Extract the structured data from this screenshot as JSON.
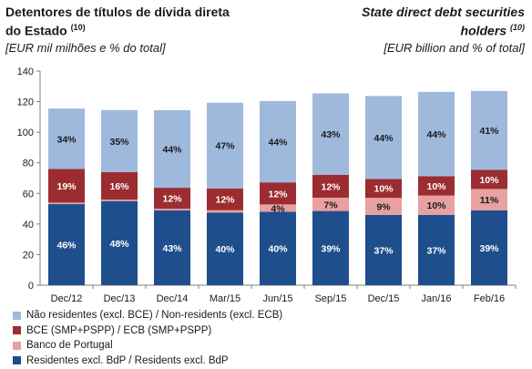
{
  "header": {
    "title_left_line1": "Detentores de títulos de dívida direta",
    "title_left_line2": "do Estado",
    "title_left_note": "(10)",
    "title_right_line1": "State direct debt securities",
    "title_right_line2": "holders",
    "title_right_note": "(10)",
    "subtitle_left": "[EUR mil milhões e % do total]",
    "subtitle_right": "[EUR billion and % of total]"
  },
  "chart_data": {
    "type": "bar",
    "stacked": true,
    "categories": [
      "Dec/12",
      "Dec/13",
      "Dec/14",
      "Mar/15",
      "Jun/15",
      "Sep/15",
      "Dec/15",
      "Jan/16",
      "Feb/16"
    ],
    "ylim": [
      0,
      140
    ],
    "yticks": [
      0,
      20,
      40,
      60,
      80,
      100,
      120,
      140
    ],
    "grid": false,
    "legend_position": "bottom-left",
    "series": [
      {
        "name": "Residentes excl. BdP / Residents excl. BdP",
        "color": "#1f4e8c",
        "label_color": "#ffffff",
        "values": [
          53,
          55,
          49,
          47.5,
          48,
          48.5,
          46,
          46,
          49
        ],
        "labels": [
          "46%",
          "48%",
          "43%",
          "40%",
          "40%",
          "39%",
          "37%",
          "37%",
          "39%"
        ]
      },
      {
        "name": "Banco de Portugal",
        "color": "#e8a0a0",
        "label_color": "#1a1a1a",
        "values": [
          1,
          1,
          1,
          1.5,
          4.8,
          8.7,
          11.1,
          12.6,
          13.9
        ],
        "labels": [
          "",
          "",
          "",
          "",
          "4%",
          "7%",
          "9%",
          "10%",
          "11%"
        ]
      },
      {
        "name": "BCE (SMP+PSPP) / ECB (SMP+PSPP)",
        "color": "#9b2d30",
        "label_color": "#ffffff",
        "values": [
          22,
          18,
          13.7,
          14.3,
          14.4,
          15,
          12.4,
          12.6,
          12.6
        ],
        "labels": [
          "19%",
          "16%",
          "12%",
          "12%",
          "12%",
          "12%",
          "10%",
          "10%",
          "10%"
        ]
      },
      {
        "name": "Não residentes (excl. BCE) / Non-residents (excl. ECB)",
        "color": "#9fb9dd",
        "label_color": "#1a1a1a",
        "values": [
          39.5,
          40.5,
          50.7,
          56,
          53.2,
          53.2,
          54.2,
          55.2,
          51.5
        ],
        "labels": [
          "34%",
          "35%",
          "44%",
          "47%",
          "44%",
          "43%",
          "44%",
          "44%",
          "41%"
        ]
      }
    ],
    "legend_order": [
      3,
      2,
      1,
      0
    ]
  }
}
